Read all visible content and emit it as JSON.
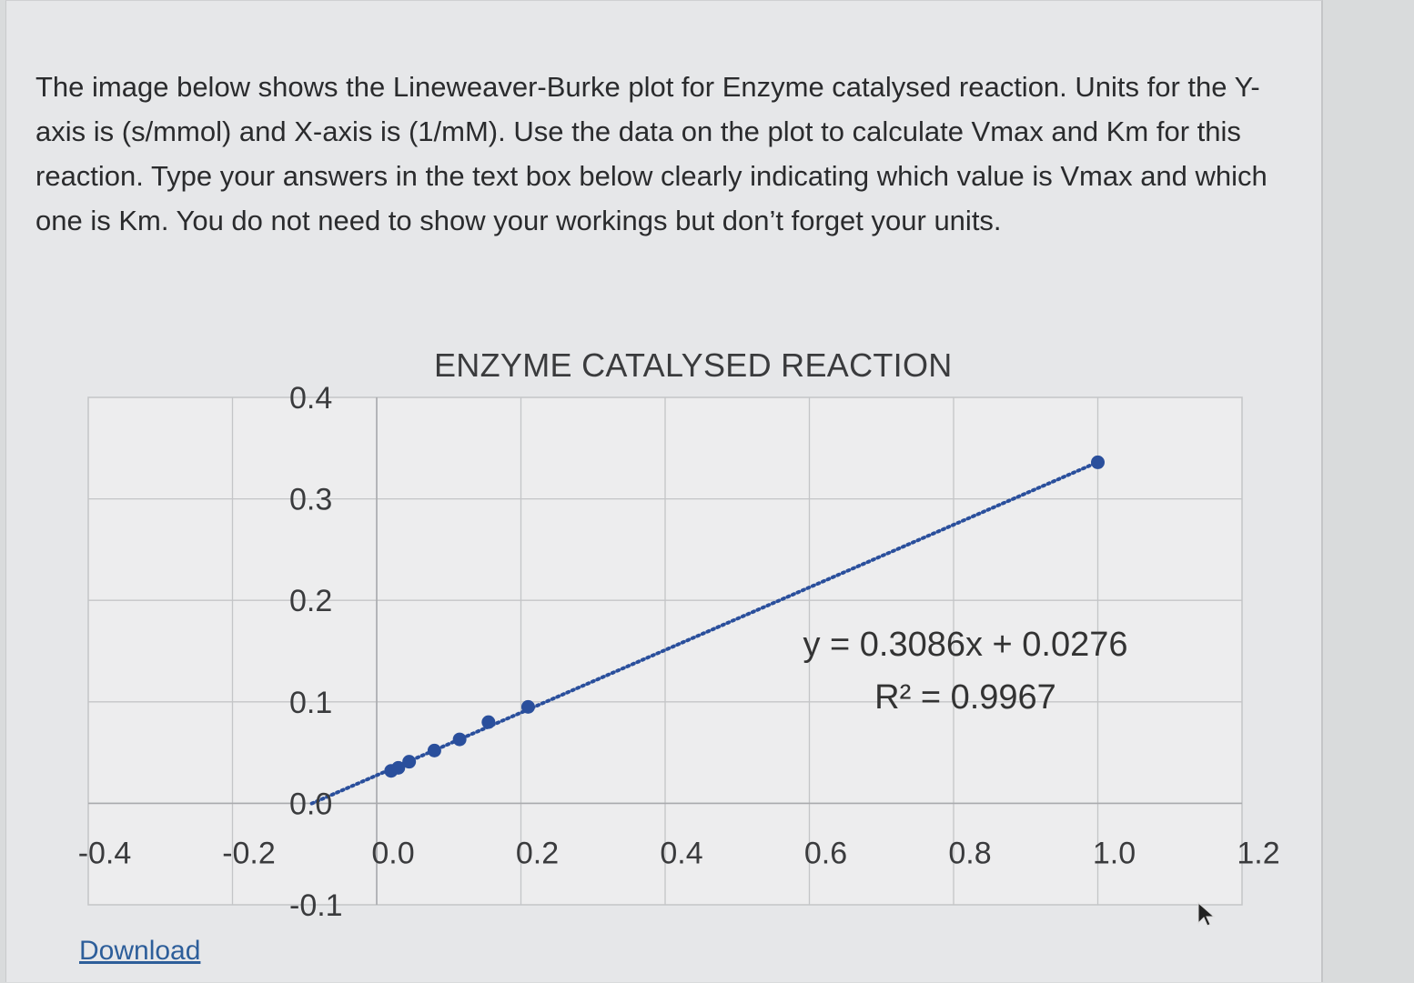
{
  "question": {
    "text": "The image below shows the Lineweaver-Burke plot for Enzyme catalysed reaction. Units for the Y-axis is (s/mmol) and X-axis is (1/mM). Use the data on the plot to calculate Vmax and Km for this reaction. Type your answers in the text box below clearly indicating which value is Vmax and which one is Km. You do not need to show your workings but don’t forget your units."
  },
  "download": {
    "label": "Download"
  },
  "chart_data": {
    "type": "scatter",
    "title": "ENZYME CATALYSED REACTION",
    "xlim": [
      -0.4,
      1.2
    ],
    "ylim": [
      -0.1,
      0.4
    ],
    "x_ticks": [
      "-0.4",
      "-0.2",
      "0.0",
      "0.2",
      "0.4",
      "0.6",
      "0.8",
      "1.0",
      "1.2"
    ],
    "y_ticks": [
      "0.4",
      "0.3",
      "0.2",
      "0.1",
      "0.0",
      "-0.1"
    ],
    "grid": true,
    "points": [
      {
        "x": 0.02,
        "y": 0.032
      },
      {
        "x": 0.03,
        "y": 0.035
      },
      {
        "x": 0.045,
        "y": 0.041
      },
      {
        "x": 0.08,
        "y": 0.052
      },
      {
        "x": 0.115,
        "y": 0.063
      },
      {
        "x": 0.155,
        "y": 0.08
      },
      {
        "x": 0.21,
        "y": 0.095
      },
      {
        "x": 1.0,
        "y": 0.336
      }
    ],
    "trendline": {
      "slope": 0.3086,
      "intercept": 0.0276,
      "x_range": [
        -0.09,
        1.0
      ],
      "equation": "y = 0.3086x + 0.0276",
      "r_squared": "R² = 0.9967"
    },
    "colors": {
      "marker": "#2a4f9c",
      "grid": "#c4c5c7"
    }
  }
}
